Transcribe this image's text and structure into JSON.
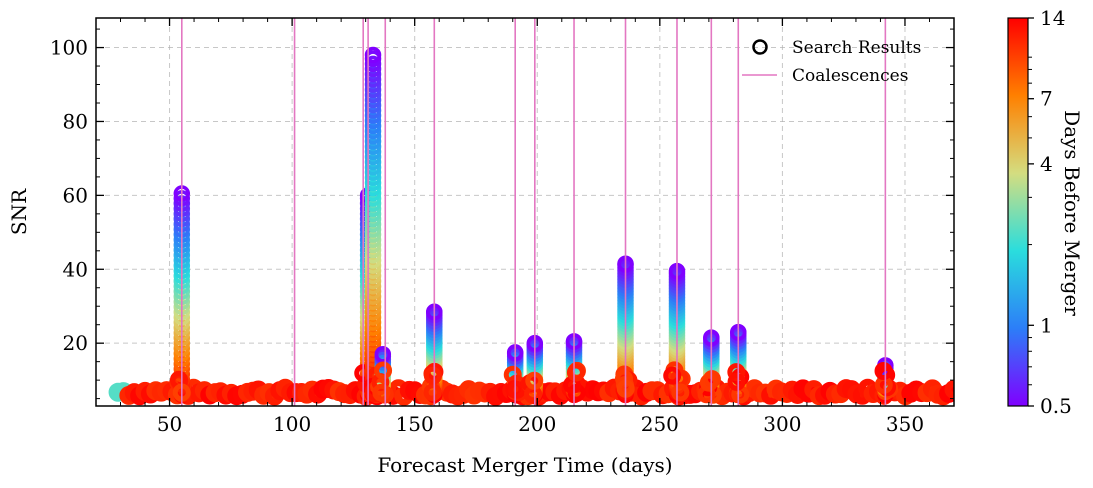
{
  "chart_data": {
    "type": "scatter",
    "xlabel": "Forecast Merger Time (days)",
    "ylabel": "SNR",
    "xlim": [
      20,
      370
    ],
    "ylim": [
      3,
      108
    ],
    "xticks": [
      50,
      100,
      150,
      200,
      250,
      300,
      350
    ],
    "yticks": [
      20,
      40,
      60,
      80,
      100
    ],
    "grid": true,
    "legend": {
      "position": "top-right",
      "entries": [
        "Search Results",
        "Coalescences"
      ]
    },
    "colorbar": {
      "label": "Days Before Merger",
      "scale": "log",
      "range": [
        0.5,
        14
      ],
      "ticks": [
        "14",
        "7",
        "4",
        "1",
        "0.5"
      ],
      "colormap": "rainbow"
    },
    "series": [
      {
        "name": "Coalescences",
        "marker": "vline",
        "color": "#e377c2",
        "x": [
          55,
          101,
          129,
          131,
          138,
          158,
          191,
          199,
          215,
          236,
          257,
          271,
          282,
          342
        ]
      },
      {
        "name": "Search Results",
        "marker": "open-circle",
        "peaks": [
          {
            "x": 55,
            "snr": 60.5
          },
          {
            "x": 131,
            "snr": 60
          },
          {
            "x": 133,
            "snr": 98
          },
          {
            "x": 137,
            "snr": 17
          },
          {
            "x": 158,
            "snr": 28.5
          },
          {
            "x": 191,
            "snr": 17.5
          },
          {
            "x": 199,
            "snr": 20
          },
          {
            "x": 215,
            "snr": 20.5
          },
          {
            "x": 236,
            "snr": 41.5
          },
          {
            "x": 257,
            "snr": 39.5
          },
          {
            "x": 271,
            "snr": 21.5
          },
          {
            "x": 282,
            "snr": 23
          },
          {
            "x": 342,
            "snr": 14
          }
        ]
      }
    ]
  },
  "colors": {
    "coalescence": "#e377c2",
    "grid": "#b0b0b0",
    "colormap": [
      "#8000ff",
      "#2c7ef8",
      "#2adddd",
      "#d4dd80",
      "#ff8000",
      "#ff0000"
    ]
  }
}
